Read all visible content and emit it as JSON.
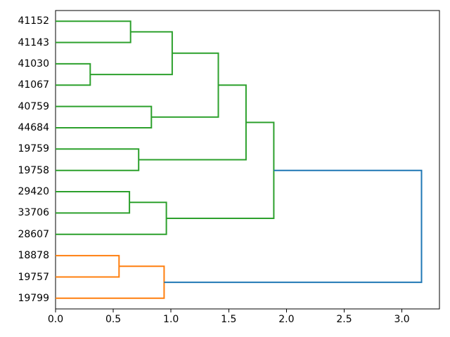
{
  "figure": {
    "background": "#ffffff",
    "axis_color": "#000000"
  },
  "chart_data": {
    "type": "dendrogram",
    "orientation": "leaves-left-root-right",
    "grid": false,
    "leaves": [
      "41152",
      "41143",
      "41030",
      "41067",
      "40759",
      "44684",
      "19759",
      "19758",
      "29420",
      "33706",
      "28607",
      "18878",
      "19757",
      "19799"
    ],
    "links": [
      {
        "id": "M0",
        "a": "L2",
        "b": "L3",
        "distance": 0.3,
        "color": "green"
      },
      {
        "id": "M1",
        "a": "L0",
        "b": "L1",
        "distance": 0.65,
        "color": "green"
      },
      {
        "id": "M2",
        "a": "M1",
        "b": "M0",
        "distance": 1.01,
        "color": "green"
      },
      {
        "id": "M3",
        "a": "L4",
        "b": "L5",
        "distance": 0.83,
        "color": "green"
      },
      {
        "id": "M4",
        "a": "M2",
        "b": "M3",
        "distance": 1.41,
        "color": "green"
      },
      {
        "id": "M5",
        "a": "L6",
        "b": "L7",
        "distance": 0.72,
        "color": "green"
      },
      {
        "id": "M6",
        "a": "M4",
        "b": "M5",
        "distance": 1.65,
        "color": "green"
      },
      {
        "id": "M7",
        "a": "L8",
        "b": "L9",
        "distance": 0.64,
        "color": "green"
      },
      {
        "id": "M8",
        "a": "M7",
        "b": "L10",
        "distance": 0.96,
        "color": "green"
      },
      {
        "id": "M9",
        "a": "M6",
        "b": "M8",
        "distance": 1.89,
        "color": "green"
      },
      {
        "id": "M10",
        "a": "L11",
        "b": "L12",
        "distance": 0.55,
        "color": "orange"
      },
      {
        "id": "M11",
        "a": "M10",
        "b": "L13",
        "distance": 0.94,
        "color": "orange"
      },
      {
        "id": "M12",
        "a": "M9",
        "b": "M11",
        "distance": 3.17,
        "color": "blue"
      }
    ],
    "xticks": [
      {
        "label": "0.0",
        "value": 0.0
      },
      {
        "label": "0.5",
        "value": 0.5
      },
      {
        "label": "1.0",
        "value": 1.0
      },
      {
        "label": "1.5",
        "value": 1.5
      },
      {
        "label": "2.0",
        "value": 2.0
      },
      {
        "label": "2.5",
        "value": 2.5
      },
      {
        "label": "3.0",
        "value": 3.0
      }
    ],
    "xlim": [
      0,
      3.325
    ],
    "palette": {
      "green": "#2ca02c",
      "orange": "#ff7f0e",
      "blue": "#1f77b4"
    }
  }
}
